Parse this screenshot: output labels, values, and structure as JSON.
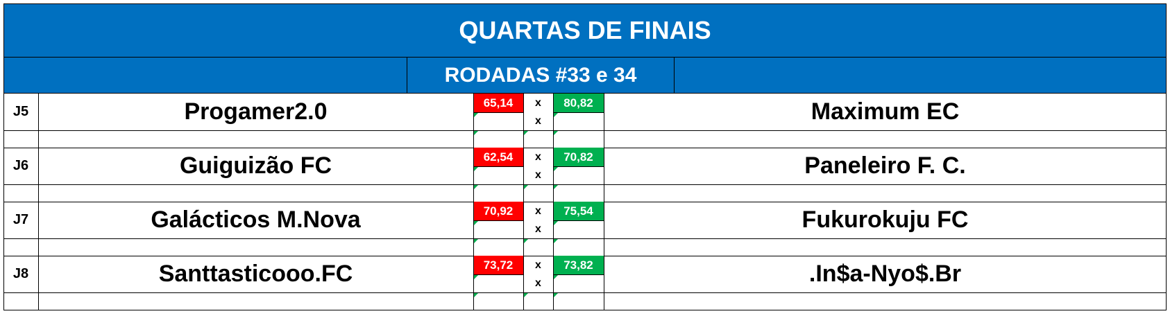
{
  "title": "QUARTAS DE FINAIS",
  "subtitle": "RODADAS #33 e 34",
  "vs_symbol": "x",
  "matches": [
    {
      "code": "J5",
      "home": "Progamer2.0",
      "home_score": "65,14",
      "away_score": "80,82",
      "away": "Maximum EC"
    },
    {
      "code": "J6",
      "home": "Guiguizão FC",
      "home_score": "62,54",
      "away_score": "70,82",
      "away": "Paneleiro F. C."
    },
    {
      "code": "J7",
      "home": "Galácticos M.Nova",
      "home_score": "70,92",
      "away_score": "75,54",
      "away": "Fukurokuju FC"
    },
    {
      "code": "J8",
      "home": "Santtasticooo.FC",
      "home_score": "73,72",
      "away_score": "73,82",
      "away": ".In$a-Nyo$.Br"
    }
  ],
  "colors": {
    "header": "#0070c0",
    "loss": "#ff0000",
    "win": "#00b050"
  }
}
